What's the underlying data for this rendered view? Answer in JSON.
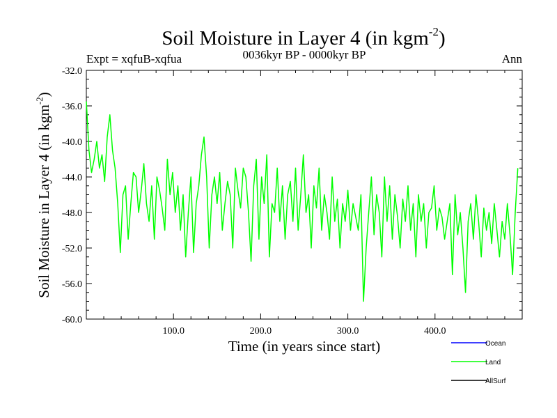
{
  "chart_data": {
    "type": "line",
    "title": "Soil Moisture in Layer 4 (in kgm",
    "title_superscript": "-2",
    "title_close": ")",
    "subtitle_left": "Expt = xqfuB-xqfua",
    "subtitle_center": "0036kyr BP - 0000kyr BP",
    "subtitle_right": "Ann",
    "xlabel": "Time (in years since start)",
    "ylabel": "Soil Moisture in Layer 4 (in kgm",
    "ylabel_superscript": "-2",
    "ylabel_close": ")",
    "xlim": [
      0,
      500
    ],
    "ylim": [
      -60,
      -32
    ],
    "xticks": [
      100,
      200,
      300,
      400
    ],
    "xtick_labels": [
      "100.0",
      "200.0",
      "300.0",
      "400.0"
    ],
    "yticks": [
      -32,
      -36,
      -40,
      -44,
      -48,
      -52,
      -56,
      -60
    ],
    "ytick_labels": [
      "-32.0",
      "-36.0",
      "-40.0",
      "-44.0",
      "-48.0",
      "-52.0",
      "-56.0",
      "-60.0"
    ],
    "legend": [
      {
        "name": "Ocean",
        "color": "#0000ff"
      },
      {
        "name": "Land",
        "color": "#00ff00"
      },
      {
        "name": "AllSurf",
        "color": "#000000"
      }
    ],
    "series": [
      {
        "name": "Land",
        "color": "#00ff00",
        "x": [
          0,
          3,
          6,
          9,
          12,
          15,
          18,
          21,
          24,
          27,
          30,
          33,
          36,
          39,
          42,
          45,
          48,
          51,
          54,
          57,
          60,
          63,
          66,
          69,
          72,
          75,
          78,
          81,
          84,
          87,
          90,
          93,
          96,
          99,
          102,
          105,
          108,
          111,
          114,
          117,
          120,
          123,
          126,
          129,
          132,
          135,
          138,
          141,
          144,
          147,
          150,
          153,
          156,
          159,
          162,
          165,
          168,
          171,
          174,
          177,
          180,
          183,
          186,
          189,
          192,
          195,
          198,
          201,
          204,
          207,
          210,
          213,
          216,
          219,
          222,
          225,
          228,
          231,
          234,
          237,
          240,
          243,
          246,
          249,
          252,
          255,
          258,
          261,
          264,
          267,
          270,
          273,
          276,
          279,
          282,
          285,
          288,
          291,
          294,
          297,
          300,
          303,
          306,
          309,
          312,
          315,
          318,
          321,
          324,
          327,
          330,
          333,
          336,
          339,
          342,
          345,
          348,
          351,
          354,
          357,
          360,
          363,
          366,
          369,
          372,
          375,
          378,
          381,
          384,
          387,
          390,
          393,
          396,
          399,
          402,
          405,
          408,
          411,
          414,
          417,
          420,
          423,
          426,
          429,
          432,
          435,
          438,
          441,
          444,
          447,
          450,
          453,
          456,
          459,
          462,
          465,
          468,
          471,
          474,
          477,
          480,
          483,
          486,
          489,
          492,
          495
        ],
        "values": [
          -35.5,
          -41,
          -43.5,
          -42,
          -40,
          -43,
          -41.5,
          -44.5,
          -39.5,
          -37,
          -41,
          -43,
          -47,
          -52.5,
          -46,
          -45,
          -51,
          -47,
          -43.5,
          -44,
          -48,
          -45.5,
          -42.5,
          -47,
          -49,
          -45,
          -51,
          -44,
          -45.5,
          -47.5,
          -50,
          -42,
          -46,
          -43.5,
          -48,
          -45,
          -50,
          -46,
          -53,
          -48,
          -44,
          -52.5,
          -47,
          -45,
          -41.5,
          -39.5,
          -44,
          -52,
          -46,
          -44,
          -47,
          -43.5,
          -50,
          -47,
          -44.5,
          -46,
          -52,
          -43,
          -45.5,
          -47.5,
          -43,
          -44,
          -48,
          -53.5,
          -45,
          -42,
          -51,
          -44,
          -47,
          -41.5,
          -53,
          -47,
          -48,
          -43,
          -49,
          -45,
          -51,
          -46,
          -44.5,
          -49,
          -43,
          -50,
          -46,
          -41.5,
          -48,
          -46,
          -52,
          -45,
          -47.5,
          -43,
          -50,
          -46,
          -48,
          -51,
          -44,
          -49,
          -46.5,
          -52,
          -47,
          -49,
          -45.5,
          -50,
          -47,
          -48.5,
          -50,
          -46,
          -58,
          -52,
          -48,
          -44,
          -50.5,
          -46,
          -48,
          -53,
          -44,
          -49,
          -45,
          -51,
          -46,
          -48.5,
          -52,
          -46.5,
          -49,
          -45,
          -50,
          -47,
          -53,
          -46,
          -49,
          -47,
          -52,
          -48,
          -47.5,
          -45,
          -50,
          -47.5,
          -48.5,
          -51,
          -49,
          -47,
          -55,
          -46,
          -50.5,
          -48,
          -52,
          -57,
          -49,
          -47,
          -51,
          -46,
          -49,
          -53,
          -47.5,
          -50,
          -48,
          -51.5,
          -47,
          -50,
          -53,
          -49,
          -51,
          -47,
          -50.5,
          -55,
          -48,
          -43
        ]
      }
    ]
  }
}
